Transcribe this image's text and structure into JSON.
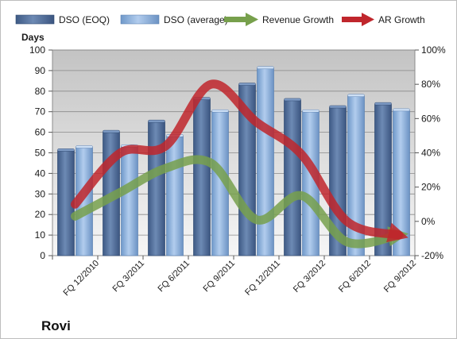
{
  "chart_data": {
    "type": "bar",
    "title": "Rovi",
    "categories": [
      "FQ 12/2010",
      "FQ 3/2011",
      "FQ 6/2011",
      "FQ 9/2011",
      "FQ 12/2011",
      "FQ 3/2012",
      "FQ 6/2012",
      "FQ 9/2012"
    ],
    "ylabel": "Days",
    "ylim": [
      0,
      100
    ],
    "yticks": [
      0,
      10,
      20,
      30,
      40,
      50,
      60,
      70,
      80,
      90,
      100
    ],
    "y2lim": [
      -20,
      100
    ],
    "y2ticks": [
      "-20%",
      "0%",
      "20%",
      "40%",
      "60%",
      "80%",
      "100%"
    ],
    "y2tick_values": [
      -20,
      0,
      20,
      40,
      60,
      80,
      100
    ],
    "legend_position": "top",
    "grid": true,
    "series": [
      {
        "name": "DSO (EOQ)",
        "kind": "bar",
        "color": "#4f6d97",
        "values": [
          51,
          60,
          65,
          76,
          83,
          75.5,
          72,
          73.5
        ]
      },
      {
        "name": "DSO (average)",
        "kind": "bar",
        "color": "#8fb3dd",
        "values": [
          52.5,
          53,
          58,
          70,
          91,
          70,
          77.5,
          70.5
        ]
      },
      {
        "name": "Revenue Growth",
        "kind": "line",
        "axis": "secondary",
        "color": "#77a04c",
        "values": [
          3,
          17,
          31,
          34,
          1,
          15,
          -12,
          -8
        ]
      },
      {
        "name": "AR Growth",
        "kind": "line",
        "axis": "secondary",
        "color": "#c0262c",
        "values": [
          10,
          40,
          44,
          80,
          58,
          39,
          0,
          -8
        ]
      }
    ]
  }
}
